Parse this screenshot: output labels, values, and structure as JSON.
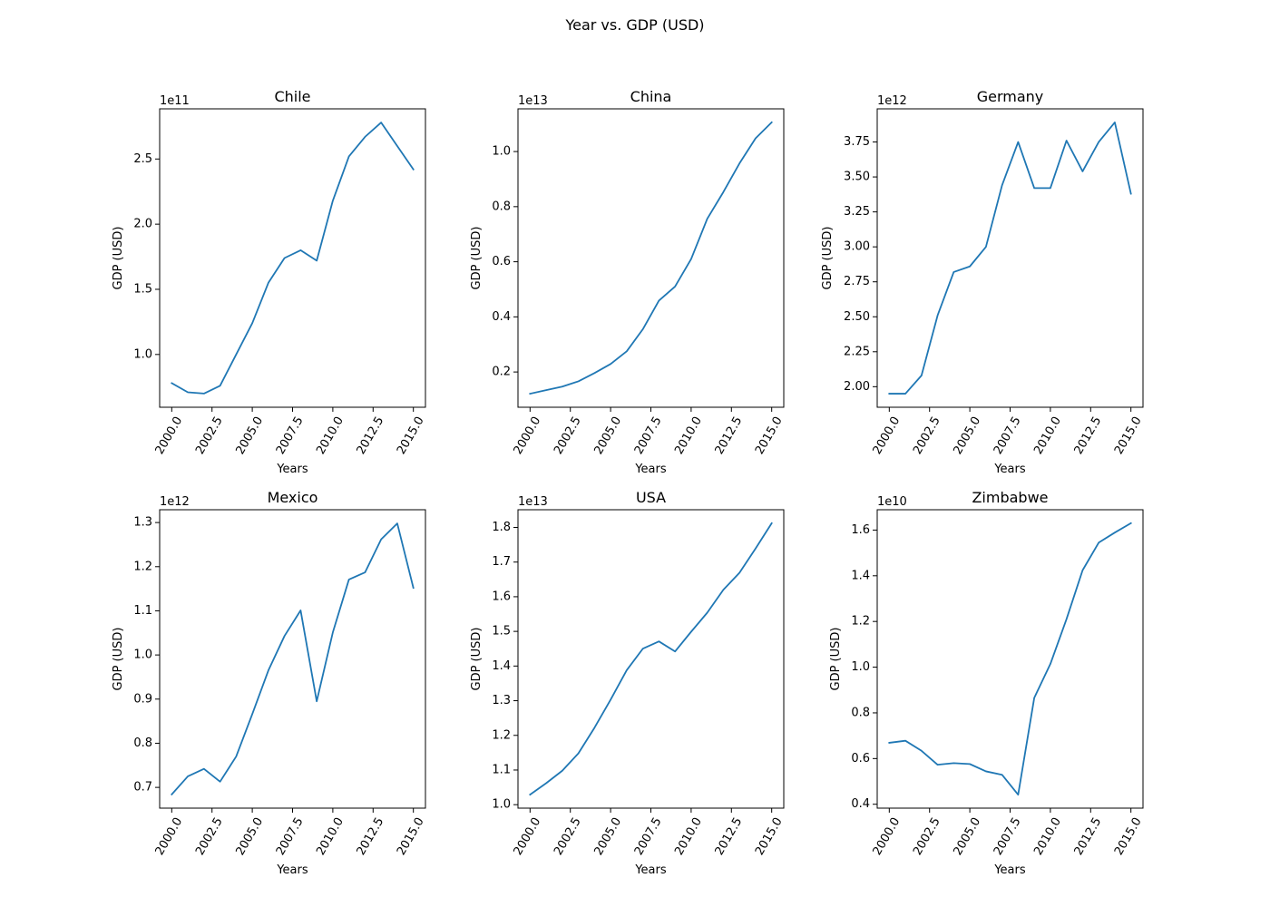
{
  "figure": {
    "title": "Year vs. GDP (USD)"
  },
  "chart_data": [
    {
      "type": "line",
      "title": "Chile",
      "xlabel": "Years",
      "ylabel": "GDP (USD)",
      "offset_label": "1e11",
      "scale": 100000000000.0,
      "color": "#1f77b4",
      "x": [
        2000,
        2001,
        2002,
        2003,
        2004,
        2005,
        2006,
        2007,
        2008,
        2009,
        2010,
        2011,
        2012,
        2013,
        2014,
        2015
      ],
      "y": [
        0.78,
        0.71,
        0.7,
        0.76,
        1.0,
        1.24,
        1.55,
        1.74,
        1.8,
        1.72,
        2.18,
        2.52,
        2.67,
        2.78,
        2.6,
        2.42
      ],
      "xticks": [
        2000.0,
        2002.5,
        2005.0,
        2007.5,
        2010.0,
        2012.5,
        2015.0
      ],
      "xtick_labels": [
        "2000.0",
        "2002.5",
        "2005.0",
        "2007.5",
        "2010.0",
        "2012.5",
        "2015.0"
      ],
      "yticks": [
        1.0,
        1.5,
        2.0,
        2.5
      ],
      "ytick_labels": [
        "1.0",
        "1.5",
        "2.0",
        "2.5"
      ],
      "xlim": [
        1999.25,
        2015.75
      ],
      "ylim": [
        0.595,
        2.885
      ]
    },
    {
      "type": "line",
      "title": "China",
      "xlabel": "Years",
      "ylabel": "GDP (USD)",
      "offset_label": "1e13",
      "scale": 10000000000000.0,
      "color": "#1f77b4",
      "x": [
        2000,
        2001,
        2002,
        2003,
        2004,
        2005,
        2006,
        2007,
        2008,
        2009,
        2010,
        2011,
        2012,
        2013,
        2014,
        2015
      ],
      "y": [
        0.121,
        0.134,
        0.147,
        0.166,
        0.196,
        0.229,
        0.275,
        0.355,
        0.459,
        0.51,
        0.61,
        0.756,
        0.853,
        0.957,
        1.048,
        1.106
      ],
      "xticks": [
        2000.0,
        2002.5,
        2005.0,
        2007.5,
        2010.0,
        2012.5,
        2015.0
      ],
      "xtick_labels": [
        "2000.0",
        "2002.5",
        "2005.0",
        "2007.5",
        "2010.0",
        "2012.5",
        "2015.0"
      ],
      "yticks": [
        0.2,
        0.4,
        0.6,
        0.8,
        1.0
      ],
      "ytick_labels": [
        "0.2",
        "0.4",
        "0.6",
        "0.8",
        "1.0"
      ],
      "xlim": [
        1999.25,
        2015.75
      ],
      "ylim": [
        0.072,
        1.155
      ]
    },
    {
      "type": "line",
      "title": "Germany",
      "xlabel": "Years",
      "ylabel": "GDP (USD)",
      "offset_label": "1e12",
      "scale": 1000000000000.0,
      "color": "#1f77b4",
      "x": [
        2000,
        2001,
        2002,
        2003,
        2004,
        2005,
        2006,
        2007,
        2008,
        2009,
        2010,
        2011,
        2012,
        2013,
        2014,
        2015
      ],
      "y": [
        1.95,
        1.95,
        2.08,
        2.51,
        2.82,
        2.86,
        3.0,
        3.44,
        3.75,
        3.42,
        3.42,
        3.76,
        3.54,
        3.75,
        3.89,
        3.38
      ],
      "xticks": [
        2000.0,
        2002.5,
        2005.0,
        2007.5,
        2010.0,
        2012.5,
        2015.0
      ],
      "xtick_labels": [
        "2000.0",
        "2002.5",
        "2005.0",
        "2007.5",
        "2010.0",
        "2012.5",
        "2015.0"
      ],
      "yticks": [
        2.0,
        2.25,
        2.5,
        2.75,
        3.0,
        3.25,
        3.5,
        3.75
      ],
      "ytick_labels": [
        "2.00",
        "2.25",
        "2.50",
        "2.75",
        "3.00",
        "3.25",
        "3.50",
        "3.75"
      ],
      "xlim": [
        1999.25,
        2015.75
      ],
      "ylim": [
        1.853,
        3.987
      ]
    },
    {
      "type": "line",
      "title": "Mexico",
      "xlabel": "Years",
      "ylabel": "GDP (USD)",
      "offset_label": "1e12",
      "scale": 1000000000000.0,
      "color": "#1f77b4",
      "x": [
        2000,
        2001,
        2002,
        2003,
        2004,
        2005,
        2006,
        2007,
        2008,
        2009,
        2010,
        2011,
        2012,
        2013,
        2014,
        2015
      ],
      "y": [
        0.684,
        0.725,
        0.742,
        0.713,
        0.77,
        0.866,
        0.965,
        1.043,
        1.101,
        0.895,
        1.051,
        1.171,
        1.187,
        1.262,
        1.298,
        1.152
      ],
      "xticks": [
        2000.0,
        2002.5,
        2005.0,
        2007.5,
        2010.0,
        2012.5,
        2015.0
      ],
      "xtick_labels": [
        "2000.0",
        "2002.5",
        "2005.0",
        "2007.5",
        "2010.0",
        "2012.5",
        "2015.0"
      ],
      "yticks": [
        0.7,
        0.8,
        0.9,
        1.0,
        1.1,
        1.2,
        1.3
      ],
      "ytick_labels": [
        "0.7",
        "0.8",
        "0.9",
        "1.0",
        "1.1",
        "1.2",
        "1.3"
      ],
      "xlim": [
        1999.25,
        2015.75
      ],
      "ylim": [
        0.653,
        1.329
      ]
    },
    {
      "type": "line",
      "title": "USA",
      "xlabel": "Years",
      "ylabel": "GDP (USD)",
      "offset_label": "1e13",
      "scale": 10000000000000.0,
      "color": "#1f77b4",
      "x": [
        2000,
        2001,
        2002,
        2003,
        2004,
        2005,
        2006,
        2007,
        2008,
        2009,
        2010,
        2011,
        2012,
        2013,
        2014,
        2015
      ],
      "y": [
        1.029,
        1.062,
        1.098,
        1.148,
        1.222,
        1.303,
        1.388,
        1.45,
        1.471,
        1.442,
        1.499,
        1.554,
        1.62,
        1.669,
        1.739,
        1.812
      ],
      "xticks": [
        2000.0,
        2002.5,
        2005.0,
        2007.5,
        2010.0,
        2012.5,
        2015.0
      ],
      "xtick_labels": [
        "2000.0",
        "2002.5",
        "2005.0",
        "2007.5",
        "2010.0",
        "2012.5",
        "2015.0"
      ],
      "yticks": [
        1.0,
        1.1,
        1.2,
        1.3,
        1.4,
        1.5,
        1.6,
        1.7,
        1.8
      ],
      "ytick_labels": [
        "1.0",
        "1.1",
        "1.2",
        "1.3",
        "1.4",
        "1.5",
        "1.6",
        "1.7",
        "1.8"
      ],
      "xlim": [
        1999.25,
        2015.75
      ],
      "ylim": [
        0.99,
        1.851
      ]
    },
    {
      "type": "line",
      "title": "Zimbabwe",
      "xlabel": "Years",
      "ylabel": "GDP (USD)",
      "offset_label": "1e10",
      "scale": 10000000000.0,
      "color": "#1f77b4",
      "x": [
        2000,
        2001,
        2002,
        2003,
        2004,
        2005,
        2006,
        2007,
        2008,
        2009,
        2010,
        2011,
        2012,
        2013,
        2014,
        2015
      ],
      "y": [
        0.669,
        0.678,
        0.634,
        0.573,
        0.58,
        0.576,
        0.544,
        0.529,
        0.442,
        0.866,
        1.014,
        1.21,
        1.424,
        1.545,
        1.589,
        1.63
      ],
      "xticks": [
        2000.0,
        2002.5,
        2005.0,
        2007.5,
        2010.0,
        2012.5,
        2015.0
      ],
      "xtick_labels": [
        "2000.0",
        "2002.5",
        "2005.0",
        "2007.5",
        "2010.0",
        "2012.5",
        "2015.0"
      ],
      "yticks": [
        0.4,
        0.6,
        0.8,
        1.0,
        1.2,
        1.4,
        1.6
      ],
      "ytick_labels": [
        "0.4",
        "0.6",
        "0.8",
        "1.0",
        "1.2",
        "1.4",
        "1.6"
      ],
      "xlim": [
        1999.25,
        2015.75
      ],
      "ylim": [
        0.383,
        1.689
      ]
    }
  ]
}
